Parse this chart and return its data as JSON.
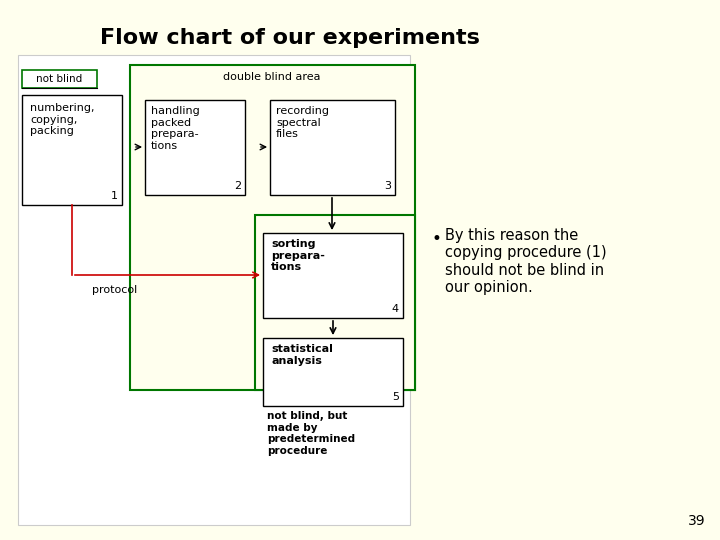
{
  "title": "Flow chart of our experiments",
  "bg_color": "#FFFFEE",
  "title_fontsize": 16,
  "bullet_text": "By this reason the\ncopying procedure (1)\nshould not be blind in\nour opinion.",
  "page_number": "39",
  "double_blind_label": "double blind area",
  "not_blind_label": "not blind",
  "box1_text": "numbering,\ncopying,\npacking",
  "box1_num": "1",
  "box2_text": "handling\npacked\nprepara-\ntions",
  "box2_num": "2",
  "box3_text": "recording\nspectral\nfiles",
  "box3_num": "3",
  "box4_text": "sorting\nprepara-\ntions",
  "box4_num": "4",
  "box5_text": "statistical\nanalysis",
  "box5_num": "5",
  "notblind_text": "not blind, but\nmade by\npredetermined\nprocedure",
  "protocol_label": "protocol",
  "green_color": "#007700",
  "red_color": "#cc0000",
  "black_color": "#000000",
  "white_color": "#ffffff"
}
